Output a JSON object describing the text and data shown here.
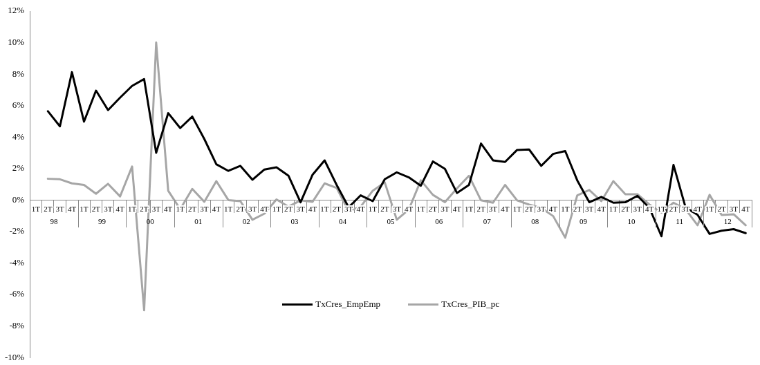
{
  "chart_data": {
    "type": "line",
    "categories": [
      "1T",
      "2T",
      "3T",
      "4T",
      "1T",
      "2T",
      "3T",
      "4T",
      "1T",
      "2T",
      "3T",
      "4T",
      "1T",
      "2T",
      "3T",
      "4T",
      "1T",
      "2T",
      "3T",
      "4T",
      "1T",
      "2T",
      "3T",
      "4T",
      "1T",
      "2T",
      "3T",
      "4T",
      "1T",
      "2T",
      "3T",
      "4T",
      "1T",
      "2T",
      "3T",
      "4T",
      "1T",
      "2T",
      "3T",
      "4T",
      "1T",
      "2T",
      "3T",
      "4T",
      "1T",
      "2T",
      "3T",
      "4T",
      "1T",
      "2T",
      "3T",
      "4T",
      "1T",
      "2T",
      "3T",
      "4T",
      "1T",
      "2T",
      "3T",
      "4T"
    ],
    "series": [
      {
        "name": "TxCres_EmpEmp",
        "color": "#000000",
        "values": [
          null,
          5.64,
          4.68,
          8.12,
          4.98,
          6.95,
          5.71,
          6.5,
          7.25,
          7.68,
          3.0,
          5.52,
          4.57,
          5.3,
          3.88,
          2.27,
          1.85,
          2.17,
          1.29,
          1.94,
          2.08,
          1.54,
          -0.14,
          1.61,
          2.52,
          0.96,
          -0.46,
          0.3,
          -0.07,
          1.32,
          1.76,
          1.44,
          0.91,
          2.45,
          1.98,
          0.45,
          0.96,
          3.59,
          2.52,
          2.42,
          3.18,
          3.21,
          2.17,
          2.93,
          3.11,
          1.25,
          -0.14,
          0.2,
          -0.17,
          -0.14,
          0.27,
          -0.5,
          -2.3,
          2.23,
          -0.46,
          -0.94,
          -2.15,
          -1.95,
          -1.85,
          -2.1
        ]
      },
      {
        "name": "TxCres_PIB_pc",
        "color": "#a6a6a6",
        "values": [
          null,
          1.35,
          1.32,
          1.06,
          0.96,
          0.4,
          1.03,
          0.23,
          2.13,
          -7.0,
          10.0,
          0.59,
          -0.58,
          0.71,
          -0.11,
          1.2,
          0.0,
          -0.07,
          -1.25,
          -0.86,
          0.04,
          -0.42,
          -0.02,
          -0.11,
          1.06,
          0.77,
          -0.7,
          -0.42,
          0.59,
          1.12,
          -1.25,
          -0.6,
          1.25,
          0.33,
          -0.14,
          0.74,
          1.54,
          -0.02,
          -0.17,
          0.96,
          -0.02,
          -0.29,
          -0.5,
          -1.02,
          -2.39,
          0.3,
          0.64,
          -0.07,
          1.2,
          0.37,
          0.37,
          -0.29,
          -0.8,
          -0.17,
          -0.58,
          -1.6,
          0.33,
          -0.95,
          -0.9,
          -1.6
        ]
      }
    ],
    "annotations": [
      "98",
      "99",
      "00",
      "01",
      "02",
      "03",
      "04",
      "05",
      "06",
      "07",
      "08",
      "09",
      "10",
      "11",
      "12"
    ],
    "ylim": [
      -10,
      12
    ],
    "yticks": [
      {
        "value": -10,
        "label": "-10%"
      },
      {
        "value": -8,
        "label": "-8%"
      },
      {
        "value": -6,
        "label": "-6%"
      },
      {
        "value": -4,
        "label": "-4%"
      },
      {
        "value": -2,
        "label": "-2%"
      },
      {
        "value": 0,
        "label": "0%"
      },
      {
        "value": 2,
        "label": "2%"
      },
      {
        "value": 4,
        "label": "4%"
      },
      {
        "value": 6,
        "label": "6%"
      },
      {
        "value": 8,
        "label": "8%"
      },
      {
        "value": 10,
        "label": "10%"
      },
      {
        "value": 12,
        "label": "12%"
      }
    ],
    "grid": false,
    "legend": "bottom",
    "marker": "none",
    "line_style": "solid"
  }
}
